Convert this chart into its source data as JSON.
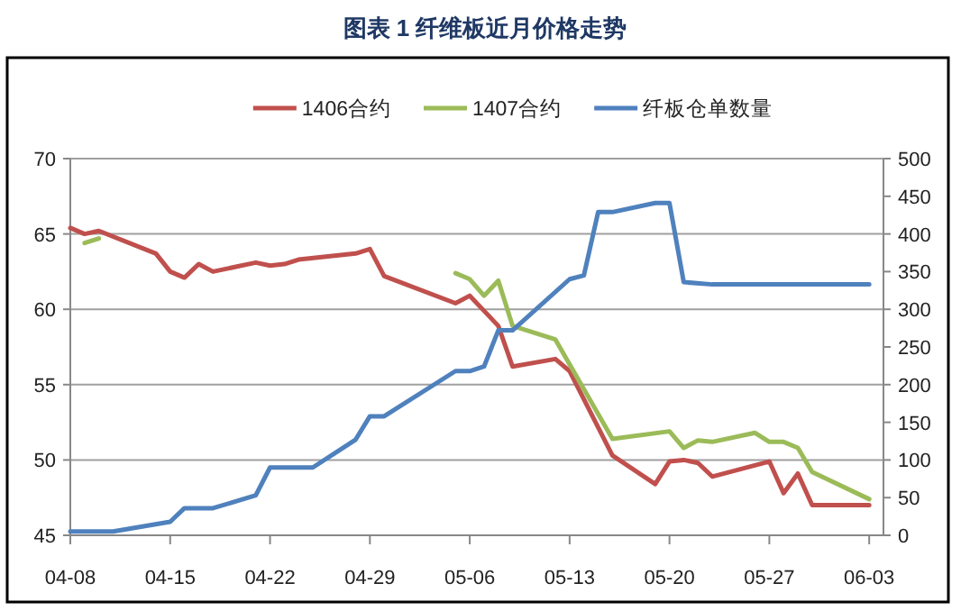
{
  "chart_data": {
    "type": "line",
    "title": "图表 1  纤维板近月价格走势",
    "xlim": [
      "--04-08",
      "--06-04"
    ],
    "xticks": [
      {
        "value": "--04-08",
        "label": "04-08"
      },
      {
        "value": "--04-15",
        "label": "04-15"
      },
      {
        "value": "--04-22",
        "label": "04-22"
      },
      {
        "value": "--04-29",
        "label": "04-29"
      },
      {
        "value": "--05-06",
        "label": "05-06"
      },
      {
        "value": "--05-13",
        "label": "05-13"
      },
      {
        "value": "--05-20",
        "label": "05-20"
      },
      {
        "value": "--05-27",
        "label": "05-27"
      },
      {
        "value": "--06-03",
        "label": "06-03"
      }
    ],
    "ylim": [
      45,
      70
    ],
    "yticks": [
      45,
      50,
      55,
      60,
      65,
      70
    ],
    "y2lim": [
      0,
      500
    ],
    "y2ticks": [
      0,
      50,
      100,
      150,
      200,
      250,
      300,
      350,
      400,
      450,
      500
    ],
    "grid": "y",
    "legend": "top",
    "line_style": "solid",
    "series": [
      {
        "name": "1406合约",
        "color": "#c0504d",
        "x": [
          "--04-08",
          "--04-09",
          "--04-10",
          "--04-14",
          "--04-15",
          "--04-16",
          "--04-17",
          "--04-18",
          "--04-21",
          "--04-22",
          "--04-23",
          "--04-24",
          "--04-28",
          "--04-29",
          "--04-30",
          "--05-05",
          "--05-06",
          "--05-07",
          "--05-08",
          "--05-09",
          "--05-12",
          "--05-13",
          "--05-16",
          "--05-19",
          "--05-20",
          "--05-21",
          "--05-22",
          "--05-23",
          "--05-27",
          "--05-28",
          "--05-29",
          "--05-30",
          "--06-03"
        ],
        "values": [
          65.4,
          65.0,
          65.2,
          63.7,
          62.5,
          62.1,
          63.0,
          62.5,
          63.1,
          62.9,
          63.0,
          63.3,
          63.7,
          64.0,
          62.2,
          60.4,
          60.9,
          59.9,
          58.9,
          56.2,
          56.7,
          55.9,
          50.3,
          48.4,
          49.9,
          50.0,
          49.8,
          48.9,
          49.9,
          47.8,
          49.1,
          47.0,
          47.0
        ]
      },
      {
        "name": "1407合约",
        "color": "#9bbb59",
        "x": [
          "--04-09",
          "--04-10",
          "--04-11",
          "--05-05",
          "--05-06",
          "--05-07",
          "--05-08",
          "--05-09",
          "--05-12",
          "--05-16",
          "--05-20",
          "--05-21",
          "--05-22",
          "--05-23",
          "--05-26",
          "--05-27",
          "--05-28",
          "--05-29",
          "--05-30",
          "--06-03"
        ],
        "values": [
          64.4,
          64.7,
          null,
          62.4,
          62.0,
          60.9,
          61.9,
          58.9,
          58.0,
          51.4,
          51.9,
          50.8,
          51.3,
          51.2,
          51.8,
          51.2,
          51.2,
          50.8,
          49.2,
          47.4
        ]
      },
      {
        "name": "纤板仓单数量",
        "color": "#4f81bd",
        "axis": "y2",
        "x": [
          "--04-08",
          "--04-11",
          "--04-15",
          "--04-16",
          "--04-18",
          "--04-21",
          "--04-22",
          "--04-25",
          "--04-28",
          "--04-29",
          "--04-30",
          "--05-05",
          "--05-06",
          "--05-07",
          "--05-08",
          "--05-09",
          "--05-13",
          "--05-14",
          "--05-15",
          "--05-16",
          "--05-19",
          "--05-20",
          "--05-21",
          "--05-23",
          "--06-03"
        ],
        "values": [
          5,
          5,
          18,
          36,
          36,
          53,
          90,
          90,
          127,
          158,
          158,
          218,
          218,
          224,
          272,
          272,
          340,
          345,
          429,
          429,
          441,
          441,
          336,
          333,
          333
        ]
      }
    ]
  }
}
